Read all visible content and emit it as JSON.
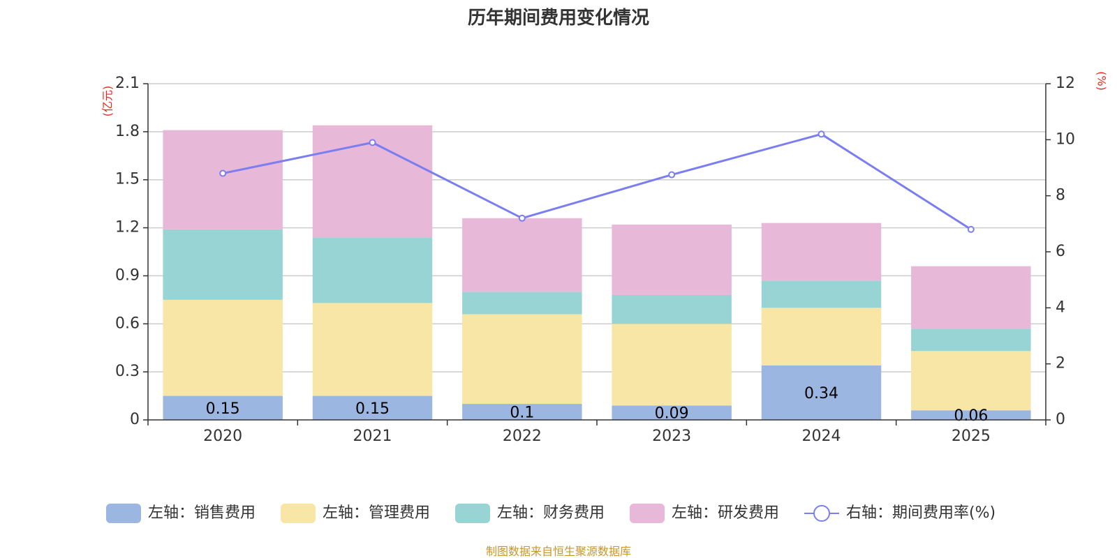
{
  "chart_data": {
    "type": "bar",
    "title": "历年期间费用变化情况",
    "categories": [
      "2020",
      "2021",
      "2022",
      "2023",
      "2024",
      "2025"
    ],
    "series": [
      {
        "name": "左轴：销售费用",
        "axis": "left",
        "color": "#9bb7e1",
        "values": [
          0.15,
          0.15,
          0.1,
          0.09,
          0.34,
          0.06
        ],
        "labels": [
          "0.15",
          "0.15",
          "0.1",
          "0.09",
          "0.34",
          "0.06"
        ]
      },
      {
        "name": "左轴：管理费用",
        "axis": "left",
        "color": "#f7e6a6",
        "values": [
          0.6,
          0.58,
          0.56,
          0.51,
          0.36,
          0.37
        ]
      },
      {
        "name": "左轴：财务费用",
        "axis": "left",
        "color": "#99d4d5",
        "values": [
          0.44,
          0.41,
          0.14,
          0.18,
          0.17,
          0.14
        ]
      },
      {
        "name": "左轴：研发费用",
        "axis": "left",
        "color": "#e8b8d9",
        "values": [
          0.62,
          0.7,
          0.46,
          0.44,
          0.36,
          0.39
        ]
      },
      {
        "name": "右轴：期间费用率(%)",
        "axis": "right",
        "type": "line",
        "color": "#7b7ef0",
        "values": [
          8.8,
          9.9,
          7.2,
          8.75,
          10.2,
          6.8
        ]
      }
    ],
    "left_axis": {
      "unit": "(亿元)",
      "ylim": [
        0,
        2.1
      ],
      "ticks": [
        "0",
        "0.3",
        "0.6",
        "0.9",
        "1.2",
        "1.5",
        "1.8",
        "2.1"
      ]
    },
    "right_axis": {
      "unit": "(%)",
      "ylim": [
        0,
        12
      ],
      "ticks": [
        "0",
        "2",
        "4",
        "6",
        "8",
        "10",
        "12"
      ]
    },
    "legend_position": "bottom",
    "grid": true
  },
  "source": "制图数据来自恒生聚源数据库"
}
